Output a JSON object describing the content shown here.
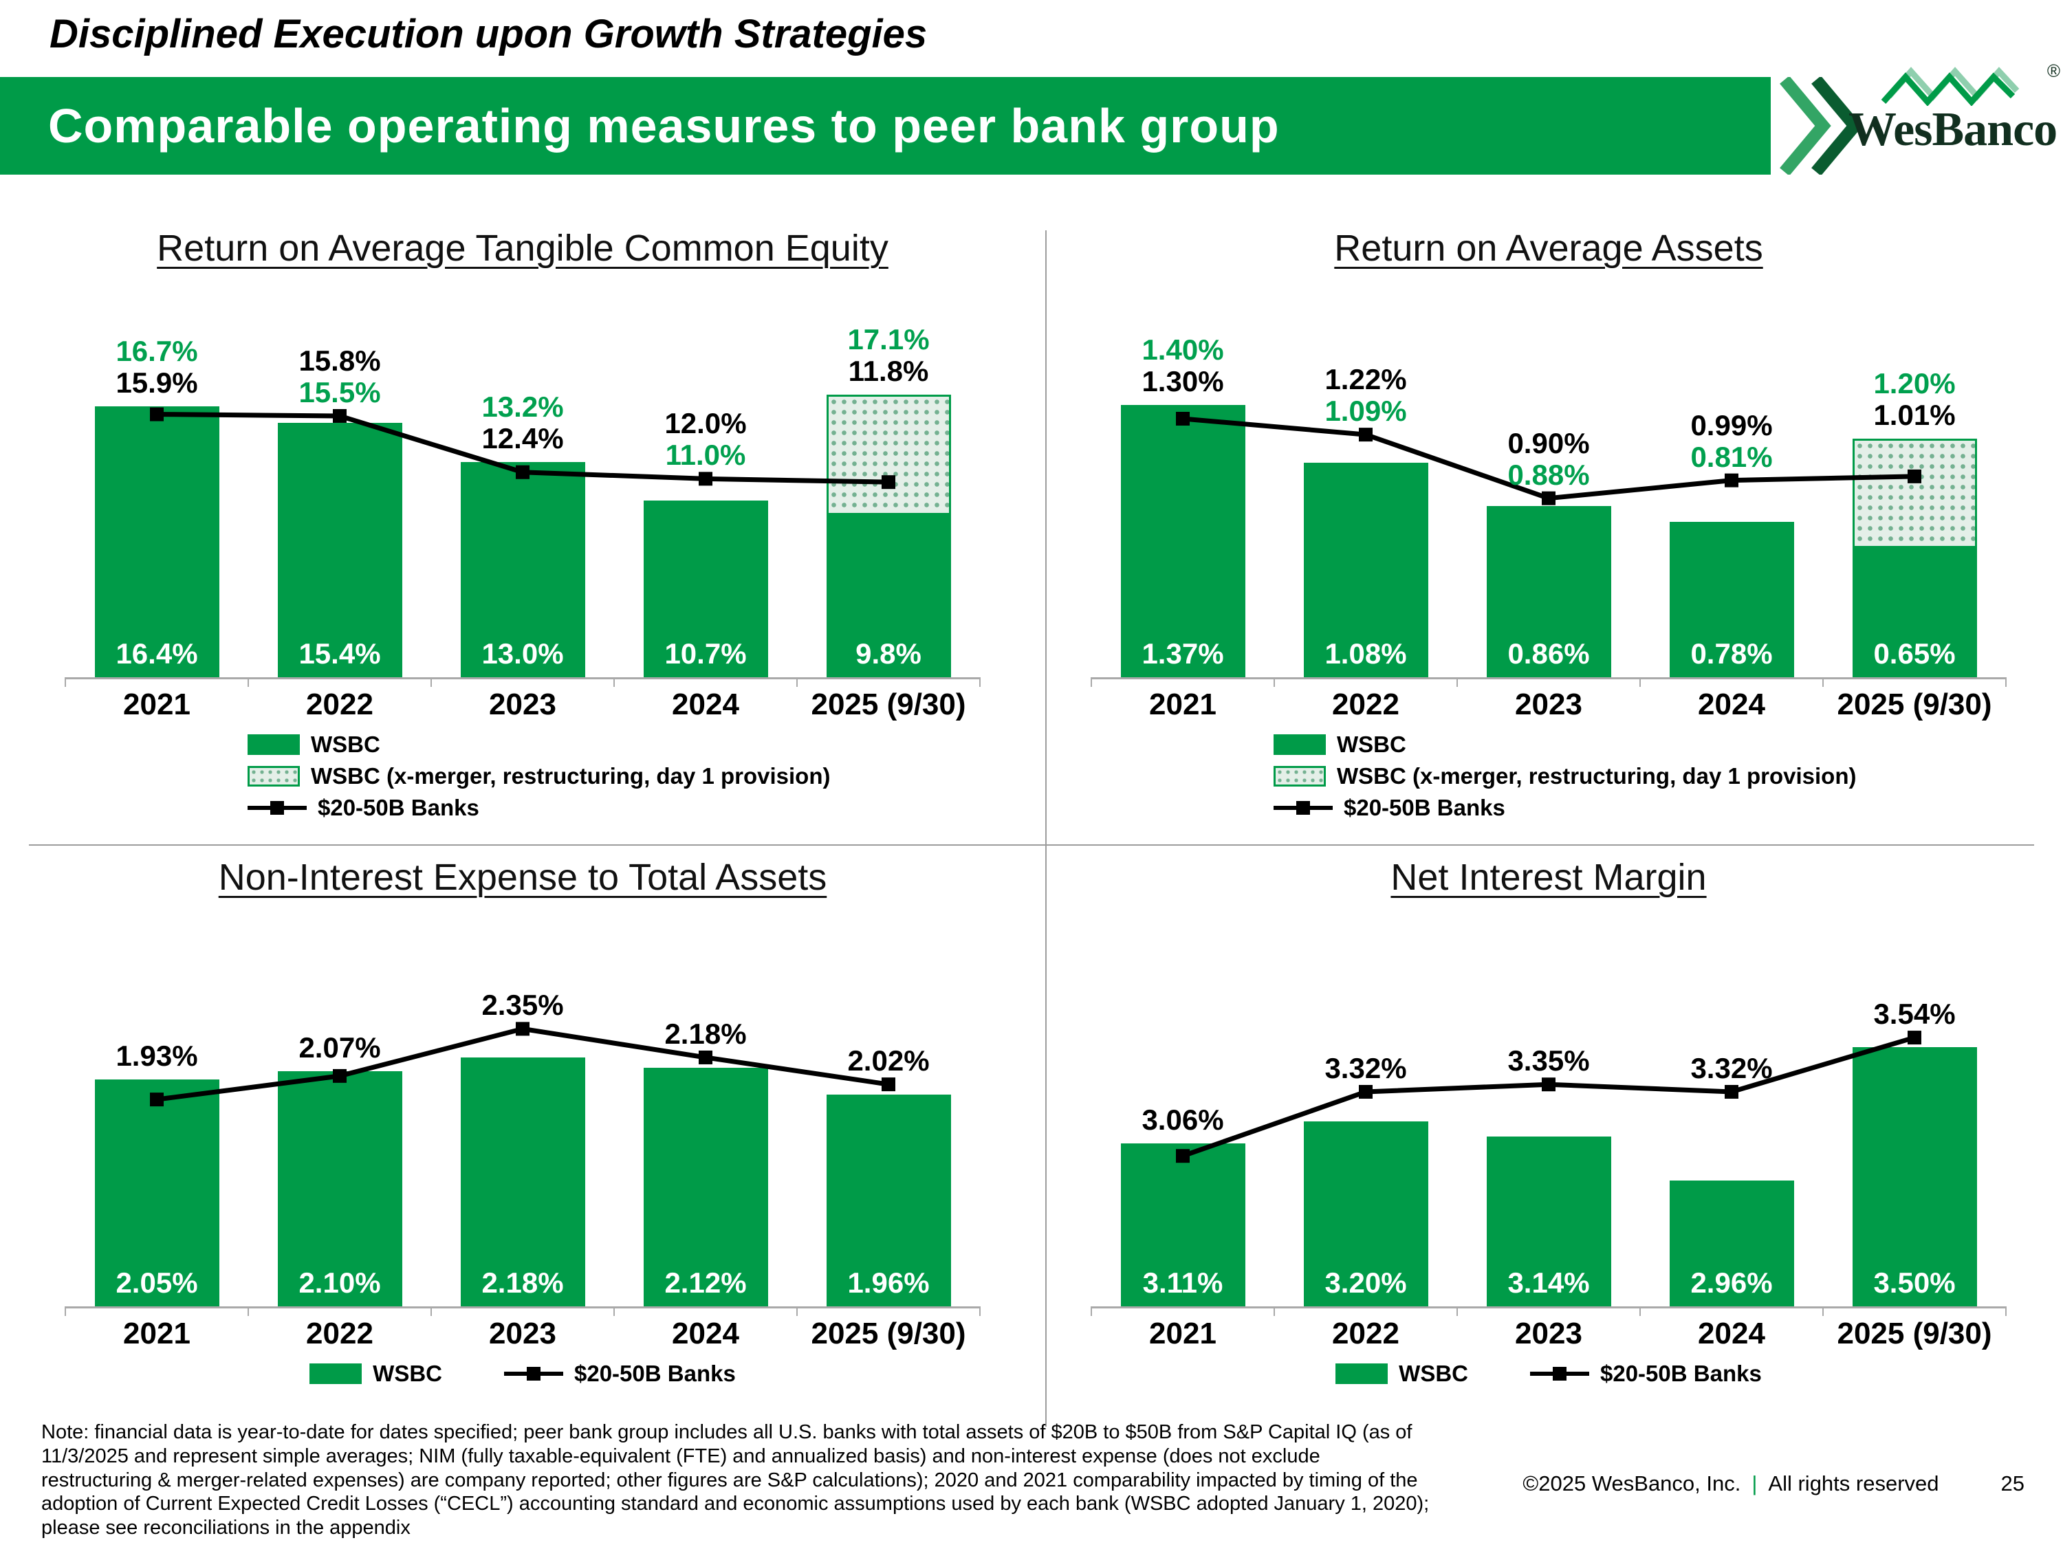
{
  "slide": {
    "kicker": "Disciplined Execution upon Growth Strategies",
    "banner_title": "Comparable operating measures to peer bank group",
    "logo": {
      "name": "WesBanco",
      "registered": "®"
    },
    "note": "Note: financial data is year-to-date for dates specified; peer bank group includes all U.S. banks with total assets of $20B to $50B from S&P Capital IQ (as of 11/3/2025 and represent simple averages; NIM (fully taxable-equivalent (FTE) and annualized basis) and non-interest expense (does not exclude restructuring & merger-related expenses) are company reported; other figures are S&P calculations); 2020 and 2021 comparability impacted by timing of the adoption of Current Expected Credit Losses (“CECL”) accounting standard and economic assumptions used by each bank (WSBC adopted January 1, 2020); please see reconciliations in the appendix",
    "footer": {
      "copyright": "©2025 WesBanco, Inc.",
      "separator": "|",
      "rights": "All rights reserved",
      "page": "25"
    }
  },
  "colors": {
    "brand_green": "#009B48",
    "label_green": "#00A04E",
    "line_black": "#000000",
    "axis_gray": "#a9a9a9"
  },
  "chart_data": [
    {
      "type": "bar",
      "title": "Return on Average Tangible Common Equity",
      "categories": [
        "2021",
        "2022",
        "2023",
        "2024",
        "2025 (9/30)"
      ],
      "decimals": 1,
      "ylim": [
        0,
        19
      ],
      "grid": false,
      "legend_position": "bottom-left",
      "bar_series": {
        "name": "WSBC",
        "values": [
          16.4,
          15.4,
          13.0,
          10.7,
          9.8
        ]
      },
      "adjusted_series": {
        "name": "WSBC (x-merger, restructuring, day 1 provision)",
        "label_values": [
          16.7,
          15.5,
          13.2,
          11.0,
          17.1
        ],
        "hatch_values": [
          null,
          null,
          null,
          null,
          17.1
        ]
      },
      "line_series": {
        "name": "$20-50B Banks",
        "values": [
          15.9,
          15.8,
          12.4,
          12.0,
          11.8
        ]
      }
    },
    {
      "type": "bar",
      "title": "Return on Average Assets",
      "categories": [
        "2021",
        "2022",
        "2023",
        "2024",
        "2025 (9/30)"
      ],
      "decimals": 2,
      "ylim": [
        0,
        1.58
      ],
      "grid": false,
      "legend_position": "bottom-left",
      "bar_series": {
        "name": "WSBC",
        "values": [
          1.37,
          1.08,
          0.86,
          0.78,
          0.65
        ]
      },
      "adjusted_series": {
        "name": "WSBC (x-merger, restructuring, day 1 provision)",
        "label_values": [
          1.4,
          1.09,
          0.88,
          0.81,
          1.2
        ],
        "hatch_values": [
          null,
          null,
          null,
          null,
          1.2
        ]
      },
      "line_series": {
        "name": "$20-50B Banks",
        "values": [
          1.3,
          1.22,
          0.9,
          0.99,
          1.01
        ]
      }
    },
    {
      "type": "bar",
      "title": "Non-Interest Expense to Total Assets",
      "categories": [
        "2021",
        "2022",
        "2023",
        "2024",
        "2025 (9/30)"
      ],
      "decimals": 2,
      "ylim": [
        0.7,
        2.65
      ],
      "grid": false,
      "legend_position": "bottom-center",
      "bar_series": {
        "name": "WSBC",
        "values": [
          2.05,
          2.1,
          2.18,
          2.12,
          1.96
        ]
      },
      "line_series": {
        "name": "$20-50B Banks",
        "values": [
          1.93,
          2.07,
          2.35,
          2.18,
          2.02
        ]
      }
    },
    {
      "type": "bar",
      "title": "Net Interest Margin",
      "categories": [
        "2021",
        "2022",
        "2023",
        "2024",
        "2025 (9/30)"
      ],
      "decimals": 2,
      "ylim": [
        2.45,
        3.78
      ],
      "grid": false,
      "legend_position": "bottom-center",
      "bar_series": {
        "name": "WSBC",
        "values": [
          3.11,
          3.2,
          3.14,
          2.96,
          3.5
        ]
      },
      "line_series": {
        "name": "$20-50B Banks",
        "values": [
          3.06,
          3.32,
          3.35,
          3.32,
          3.54
        ]
      }
    }
  ]
}
